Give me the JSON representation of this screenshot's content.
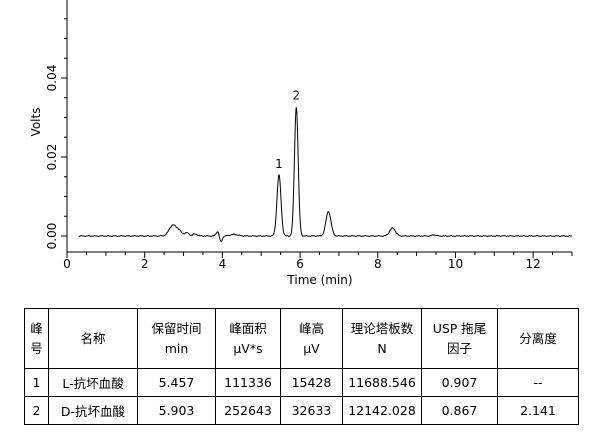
{
  "chart_data": {
    "type": "line",
    "xlabel": "Time (min)",
    "ylabel": "Volts",
    "xlim": [
      0,
      13
    ],
    "ylim": [
      -0.002,
      0.059
    ],
    "x_ticks": [
      "0",
      "2",
      "4",
      "6",
      "8",
      "10",
      "12"
    ],
    "y_ticks": [
      "0.00",
      "0.02",
      "0.04"
    ],
    "baseline": 0.0,
    "baseline_start": 0.3,
    "peaks": [
      {
        "t": 2.72,
        "h": 0.0027,
        "w": 0.09
      },
      {
        "t": 2.88,
        "h": 0.0012,
        "w": 0.07
      },
      {
        "t": 3.08,
        "h": 0.0008,
        "w": 0.06
      },
      {
        "t": 3.3,
        "h": 0.0005,
        "w": 0.06
      },
      {
        "t": 3.88,
        "h": 0.0012,
        "w": 0.04
      },
      {
        "t": 3.96,
        "h": -0.0016,
        "w": 0.035
      },
      {
        "t": 4.3,
        "h": 0.0004,
        "w": 0.1
      },
      {
        "t": 5.457,
        "h": 0.0154,
        "w": 0.052
      },
      {
        "t": 5.903,
        "h": 0.0326,
        "w": 0.048
      },
      {
        "t": 6.73,
        "h": 0.0062,
        "w": 0.065
      },
      {
        "t": 8.38,
        "h": 0.002,
        "w": 0.075
      },
      {
        "t": 9.45,
        "h": 0.0003,
        "w": 0.05
      }
    ],
    "peak_labels": [
      {
        "label": "1",
        "t": 5.457,
        "y": 0.0172
      },
      {
        "label": "2",
        "t": 5.903,
        "y": 0.0345
      }
    ]
  },
  "table": {
    "headers": [
      [
        "峰",
        "号"
      ],
      [
        "名称"
      ],
      [
        "保留时间",
        "min"
      ],
      [
        "峰面积",
        "μV*s"
      ],
      [
        "峰高",
        "μV"
      ],
      [
        "理论塔板数",
        "N"
      ],
      [
        "USP 拖尾",
        "因子"
      ],
      [
        "分离度"
      ]
    ],
    "rows": [
      [
        "1",
        "L-抗坏血酸",
        "5.457",
        "111336",
        "15428",
        "11688.546",
        "0.907",
        "--"
      ],
      [
        "2",
        "D-抗坏血酸",
        "5.903",
        "252643",
        "32633",
        "12142.028",
        "0.867",
        "2.141"
      ]
    ]
  }
}
